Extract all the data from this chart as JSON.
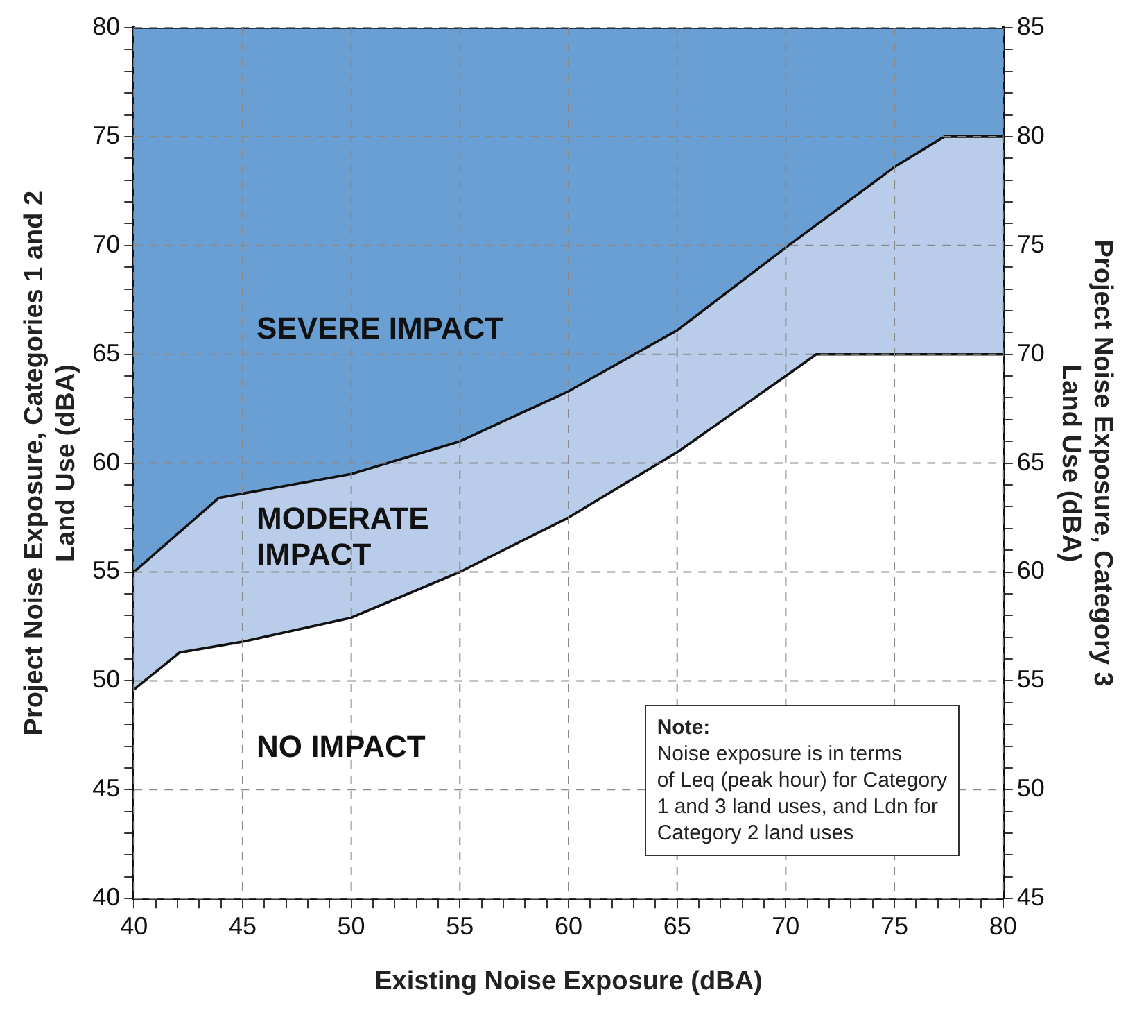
{
  "chart_data": {
    "type": "area",
    "xlabel": "Existing Noise Exposure (dBA)",
    "ylabel": "Project Noise Exposure, Categories 1 and 2\nLand Use (dBA)",
    "y2label": "Project Noise Exposure, Category 3\nLand Use (dBA)",
    "series": [
      {
        "x": [
          40,
          42.1,
          45,
          50,
          55,
          60,
          65,
          70,
          71.4,
          80
        ],
        "values": [
          49.6,
          51.3,
          51.8,
          52.9,
          55,
          57.5,
          60.5,
          64,
          65,
          65
        ],
        "color": "#ffffff"
      },
      {
        "x": [
          40,
          43.9,
          45,
          50,
          55,
          60,
          65,
          70,
          75,
          77.3,
          80
        ],
        "values": [
          55,
          58.4,
          58.6,
          59.5,
          61,
          63.3,
          66.1,
          69.9,
          73.6,
          75,
          75
        ],
        "color": "#b9cdea"
      },
      {
        "x": [
          40,
          80
        ],
        "values": [
          80,
          80
        ],
        "color": "#6a9fd4"
      }
    ],
    "xlim": [
      40,
      80
    ],
    "xticks": [
      40,
      {
        "value": 41,
        "label": null
      },
      {
        "value": 42,
        "label": null
      },
      {
        "value": 43,
        "label": null
      },
      {
        "value": 44,
        "label": null
      },
      45,
      {
        "value": 46,
        "label": null
      },
      {
        "value": 47,
        "label": null
      },
      {
        "value": 48,
        "label": null
      },
      {
        "value": 49,
        "label": null
      },
      50,
      {
        "value": 51,
        "label": null
      },
      {
        "value": 52,
        "label": null
      },
      {
        "value": 53,
        "label": null
      },
      {
        "value": 54,
        "label": null
      },
      55,
      {
        "value": 56,
        "label": null
      },
      {
        "value": 57,
        "label": null
      },
      {
        "value": 58,
        "label": null
      },
      {
        "value": 59,
        "label": null
      },
      60,
      {
        "value": 61,
        "label": null
      },
      {
        "value": 62,
        "label": null
      },
      {
        "value": 63,
        "label": null
      },
      {
        "value": 64,
        "label": null
      },
      65,
      {
        "value": 66,
        "label": null
      },
      {
        "value": 67,
        "label": null
      },
      {
        "value": 68,
        "label": null
      },
      {
        "value": 69,
        "label": null
      },
      70,
      {
        "value": 71,
        "label": null
      },
      {
        "value": 72,
        "label": null
      },
      {
        "value": 73,
        "label": null
      },
      {
        "value": 74,
        "label": null
      },
      75,
      {
        "value": 76,
        "label": null
      },
      {
        "value": 77,
        "label": null
      },
      {
        "value": 78,
        "label": null
      },
      {
        "value": 79,
        "label": null
      },
      80
    ],
    "ylim": [
      40,
      80
    ],
    "yticks": [
      40,
      {
        "value": 41,
        "label": null
      },
      {
        "value": 42,
        "label": null
      },
      {
        "value": 43,
        "label": null
      },
      {
        "value": 44,
        "label": null
      },
      45,
      {
        "value": 46,
        "label": null
      },
      {
        "value": 47,
        "label": null
      },
      {
        "value": 48,
        "label": null
      },
      {
        "value": 49,
        "label": null
      },
      50,
      {
        "value": 51,
        "label": null
      },
      {
        "value": 52,
        "label": null
      },
      {
        "value": 53,
        "label": null
      },
      {
        "value": 54,
        "label": null
      },
      55,
      {
        "value": 56,
        "label": null
      },
      {
        "value": 57,
        "label": null
      },
      {
        "value": 58,
        "label": null
      },
      {
        "value": 59,
        "label": null
      },
      60,
      {
        "value": 61,
        "label": null
      },
      {
        "value": 62,
        "label": null
      },
      {
        "value": 63,
        "label": null
      },
      {
        "value": 64,
        "label": null
      },
      65,
      {
        "value": 66,
        "label": null
      },
      {
        "value": 67,
        "label": null
      },
      {
        "value": 68,
        "label": null
      },
      {
        "value": 69,
        "label": null
      },
      70,
      {
        "value": 71,
        "label": null
      },
      {
        "value": 72,
        "label": null
      },
      {
        "value": 73,
        "label": null
      },
      {
        "value": 74,
        "label": null
      },
      75,
      {
        "value": 76,
        "label": null
      },
      {
        "value": 77,
        "label": null
      },
      {
        "value": 78,
        "label": null
      },
      {
        "value": 79,
        "label": null
      },
      80
    ],
    "y2lim": [
      45,
      85
    ],
    "y2ticks": [
      45,
      {
        "value": 46,
        "label": null
      },
      {
        "value": 47,
        "label": null
      },
      {
        "value": 48,
        "label": null
      },
      {
        "value": 49,
        "label": null
      },
      50,
      {
        "value": 51,
        "label": null
      },
      {
        "value": 52,
        "label": null
      },
      {
        "value": 53,
        "label": null
      },
      {
        "value": 54,
        "label": null
      },
      55,
      {
        "value": 56,
        "label": null
      },
      {
        "value": 57,
        "label": null
      },
      {
        "value": 58,
        "label": null
      },
      {
        "value": 59,
        "label": null
      },
      60,
      {
        "value": 61,
        "label": null
      },
      {
        "value": 62,
        "label": null
      },
      {
        "value": 63,
        "label": null
      },
      {
        "value": 64,
        "label": null
      },
      65,
      {
        "value": 66,
        "label": null
      },
      {
        "value": 67,
        "label": null
      },
      {
        "value": 68,
        "label": null
      },
      {
        "value": 69,
        "label": null
      },
      70,
      {
        "value": 71,
        "label": null
      },
      {
        "value": 72,
        "label": null
      },
      {
        "value": 73,
        "label": null
      },
      {
        "value": 74,
        "label": null
      },
      75,
      {
        "value": 76,
        "label": null
      },
      {
        "value": 77,
        "label": null
      },
      {
        "value": 78,
        "label": null
      },
      {
        "value": 79,
        "label": null
      },
      80,
      {
        "value": 81,
        "label": null
      },
      {
        "value": 82,
        "label": null
      },
      {
        "value": 83,
        "label": null
      },
      {
        "value": 84,
        "label": null
      },
      85
    ],
    "grid": true,
    "line_style": "solid",
    "marker": "none",
    "annotations": [
      "SEVERE IMPACT",
      "MODERATE\nIMPACT",
      "NO IMPACT",
      "Note:",
      "Noise exposure is in terms\nof Leq (peak hour) for Category\n1 and 3 land uses, and Ldn for\nCategory 2 land uses"
    ]
  }
}
